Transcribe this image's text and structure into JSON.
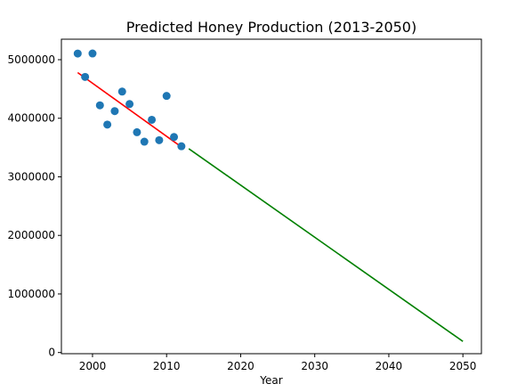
{
  "chart_data": {
    "type": "scatter",
    "title": "Predicted Honey Production (2013-2050)",
    "xlabel": "Year",
    "ylabel": "",
    "xlim": [
      1995.8,
      2052.5
    ],
    "ylim": [
      -20000,
      5350000
    ],
    "x_ticks": [
      2000,
      2010,
      2020,
      2030,
      2040,
      2050
    ],
    "y_ticks": [
      0,
      1000000,
      2000000,
      3000000,
      4000000,
      5000000
    ],
    "grid": false,
    "colors": {
      "points": "#1f77b4",
      "fit_line": "#ff0000",
      "forecast_line": "#008000"
    },
    "series": [
      {
        "type": "scatter",
        "x": [
          1998,
          1999,
          2000,
          2001,
          2002,
          2003,
          2004,
          2005,
          2006,
          2007,
          2008,
          2009,
          2010,
          2011,
          2012
        ],
        "y": [
          5105000,
          4706000,
          5106000,
          4221000,
          3892000,
          4122000,
          4456000,
          4243000,
          3762000,
          3600000,
          3974000,
          3626000,
          4382000,
          3680000,
          3522000
        ]
      },
      {
        "type": "line",
        "x": [
          1998,
          2012
        ],
        "y": [
          4780000,
          3510000
        ]
      },
      {
        "type": "line",
        "x": [
          2013,
          2050
        ],
        "y": [
          3480000,
          190000
        ]
      }
    ]
  }
}
